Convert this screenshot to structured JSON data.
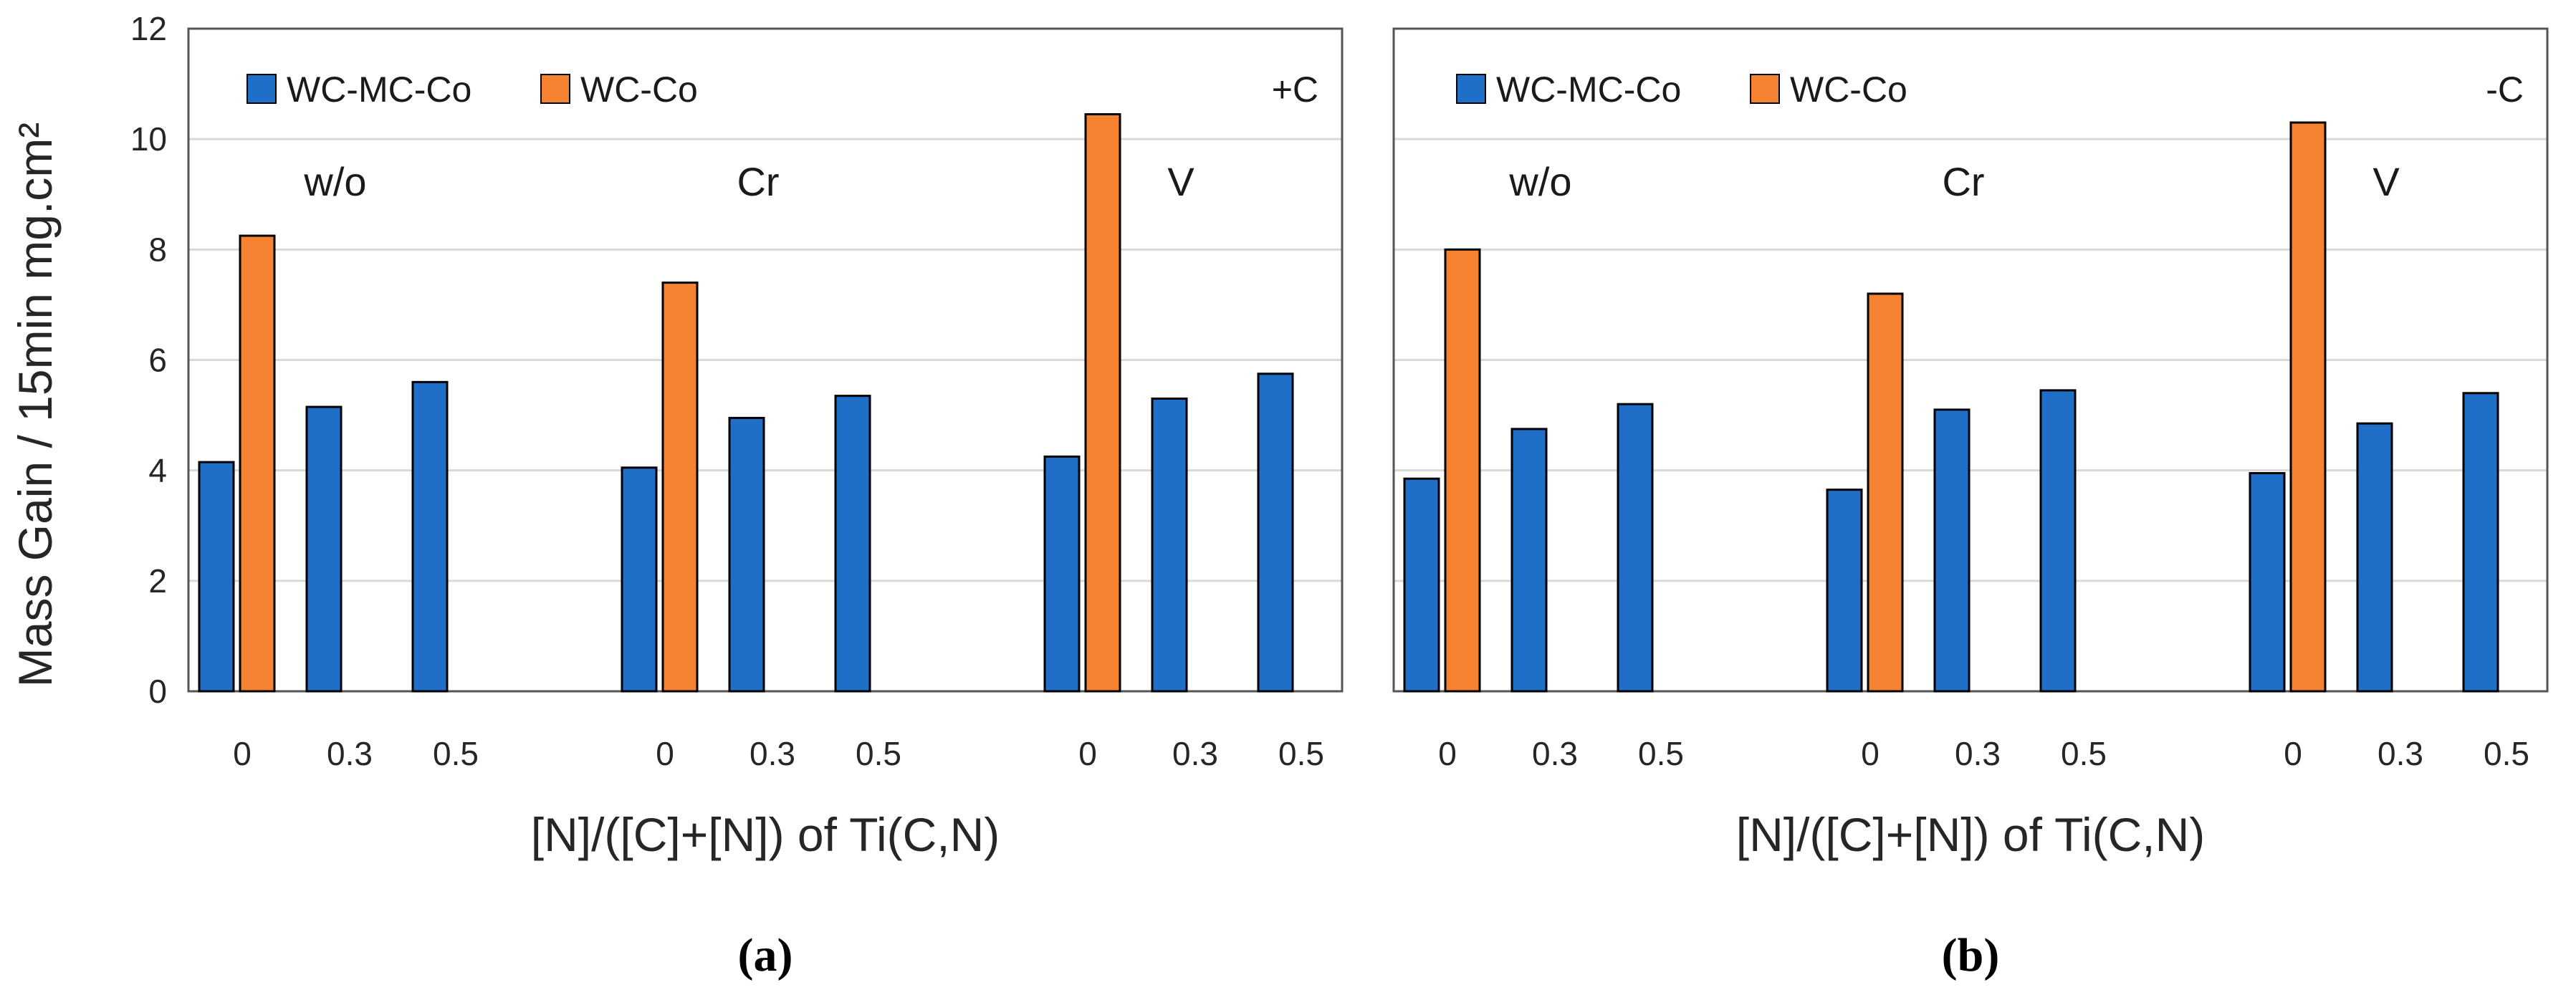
{
  "colors": {
    "wc_mc_co": "#1f6fc9",
    "wc_co": "#f58230",
    "grid": "#d9d9d9",
    "axis": "#595959"
  },
  "y_axis_label": "Mass Gain / 15min mg.cm²",
  "chart_data": [
    {
      "type": "bar",
      "panel": "a",
      "caption": "(a)",
      "tag": "+C",
      "xlabel": "[N]/([C]+[N]) of Ti(C,N)",
      "ylabel": "Mass Gain / 15min mg.cm²",
      "ylim": [
        0,
        12
      ],
      "yticks": [
        "0",
        "2",
        "4",
        "6",
        "8",
        "10",
        "12"
      ],
      "legend": [
        "WC-MC-Co",
        "WC-Co"
      ],
      "legend_position": "top-left",
      "groups": [
        {
          "label": "w/o",
          "categories": [
            "0",
            "0.3",
            "0.5"
          ],
          "wc_mc_co": [
            4.15,
            5.15,
            5.6
          ],
          "wc_co": [
            8.25,
            null,
            null
          ]
        },
        {
          "label": "Cr",
          "categories": [
            "0",
            "0.3",
            "0.5"
          ],
          "wc_mc_co": [
            4.05,
            4.95,
            5.35
          ],
          "wc_co": [
            7.4,
            null,
            null
          ]
        },
        {
          "label": "V",
          "categories": [
            "0",
            "0.3",
            "0.5"
          ],
          "wc_mc_co": [
            4.25,
            5.3,
            5.75
          ],
          "wc_co": [
            10.45,
            null,
            null
          ]
        }
      ]
    },
    {
      "type": "bar",
      "panel": "b",
      "caption": "(b)",
      "tag": "-C",
      "xlabel": "[N]/([C]+[N]) of Ti(C,N)",
      "ylabel": "",
      "ylim": [
        0,
        12
      ],
      "yticks": [],
      "legend": [
        "WC-MC-Co",
        "WC-Co"
      ],
      "legend_position": "top-left",
      "groups": [
        {
          "label": "w/o",
          "categories": [
            "0",
            "0.3",
            "0.5"
          ],
          "wc_mc_co": [
            3.85,
            4.75,
            5.2
          ],
          "wc_co": [
            8.0,
            null,
            null
          ]
        },
        {
          "label": "Cr",
          "categories": [
            "0",
            "0.3",
            "0.5"
          ],
          "wc_mc_co": [
            3.65,
            5.1,
            5.45
          ],
          "wc_co": [
            7.2,
            null,
            null
          ]
        },
        {
          "label": "V",
          "categories": [
            "0",
            "0.3",
            "0.5"
          ],
          "wc_mc_co": [
            3.95,
            4.85,
            5.4
          ],
          "wc_co": [
            10.3,
            null,
            null
          ]
        }
      ]
    }
  ]
}
